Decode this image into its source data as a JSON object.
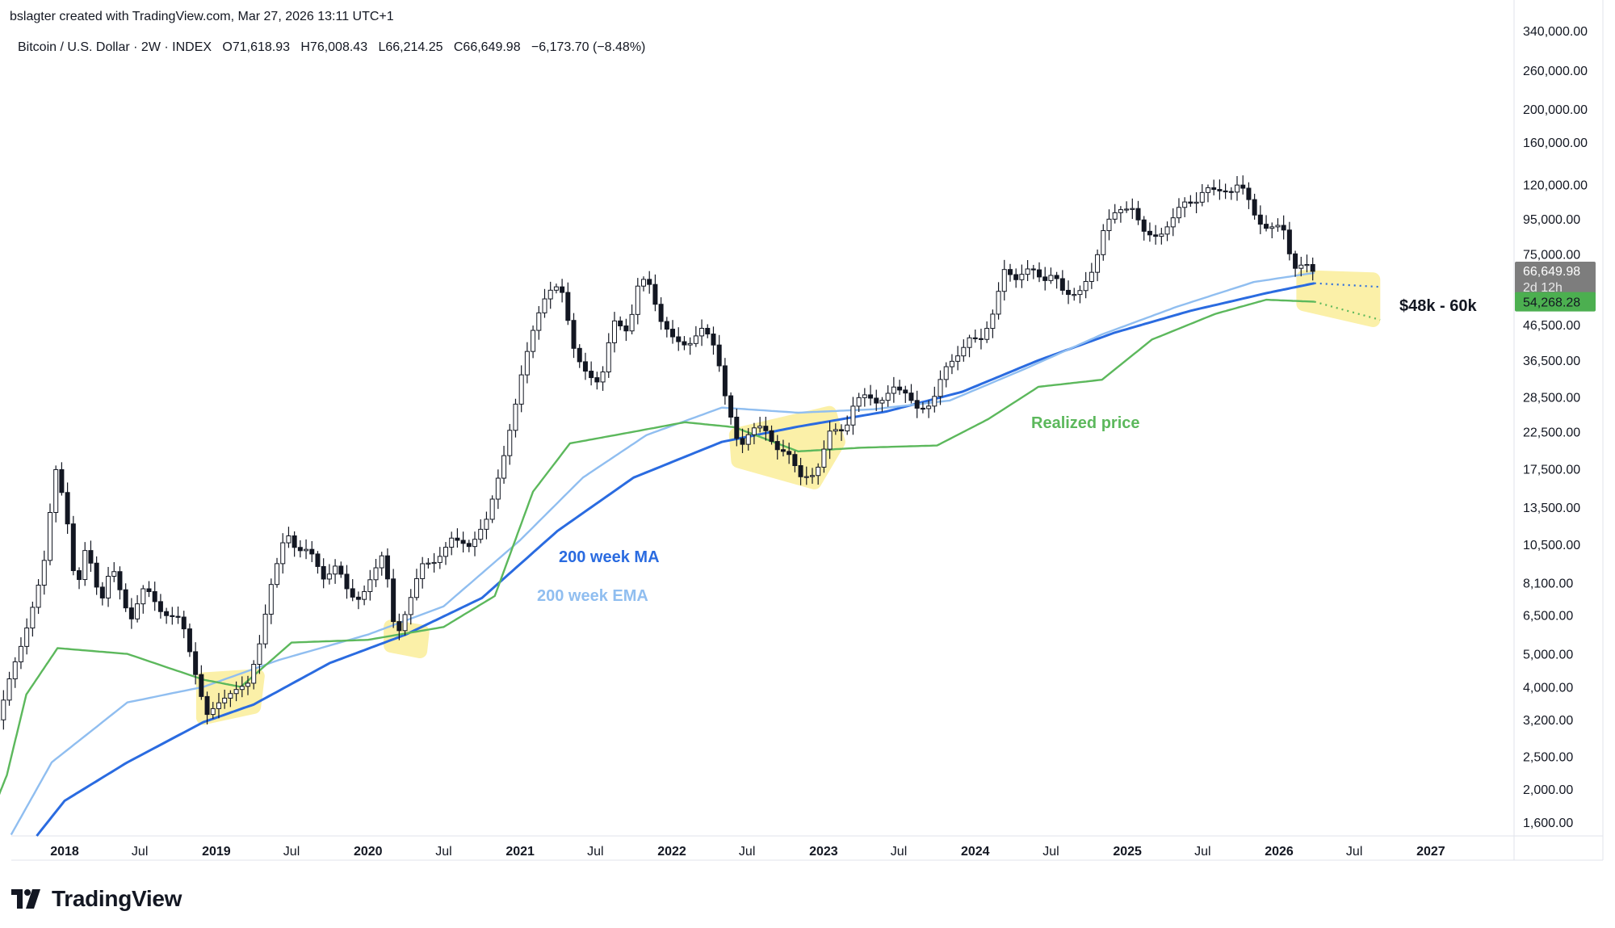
{
  "header": {
    "created_by": "bslagter created with TradingView.com, Mar 27, 2026 13:11 UTC+1",
    "symbol": "Bitcoin / U.S. Dollar · 2W · INDEX",
    "open": "O71,618.93",
    "high": "H76,008.43",
    "low": "L66,214.25",
    "close": "C66,649.98",
    "change": "−6,173.70 (−8.48%)"
  },
  "brand": {
    "name": "TradingView",
    "logo_icon": "tradingview-logo-icon"
  },
  "colors": {
    "candle": "#131722",
    "ma": "#2a6be0",
    "ema": "#90bef0",
    "realized": "#5cb85c",
    "highlight": "#fbef9f",
    "last_price_bg": "#7d7d7d",
    "realized_label_bg": "#4caf50"
  },
  "price_labels": {
    "last": "66,649.98",
    "countdown": "2d 12h",
    "realized": "54,268.28"
  },
  "annotations": {
    "ma": "200 week MA",
    "ema": "200 week EMA",
    "realized": "Realized price",
    "target": "$48k - 60k"
  },
  "chart_data": {
    "type": "candlestick",
    "interval": "2W",
    "y_scale": "log",
    "ylim": [
      1400,
      360000
    ],
    "xlim": [
      "2017-07-01",
      "2027-07-01"
    ],
    "y_ticks": [
      {
        "v": 340000,
        "label": "340,000.00"
      },
      {
        "v": 260000,
        "label": "260,000.00"
      },
      {
        "v": 200000,
        "label": "200,000.00"
      },
      {
        "v": 160000,
        "label": "160,000.00"
      },
      {
        "v": 120000,
        "label": "120,000.00"
      },
      {
        "v": 95000,
        "label": "95,000.00"
      },
      {
        "v": 75000,
        "label": "75,000.00"
      },
      {
        "v": 46500,
        "label": "46,500.00"
      },
      {
        "v": 36500,
        "label": "36,500.00"
      },
      {
        "v": 28500,
        "label": "28,500.00"
      },
      {
        "v": 22500,
        "label": "22,500.00"
      },
      {
        "v": 17500,
        "label": "17,500.00"
      },
      {
        "v": 13500,
        "label": "13,500.00"
      },
      {
        "v": 10500,
        "label": "10,500.00"
      },
      {
        "v": 8100,
        "label": "8,100.00"
      },
      {
        "v": 6500,
        "label": "6,500.00"
      },
      {
        "v": 5000,
        "label": "5,000.00"
      },
      {
        "v": 4000,
        "label": "4,000.00"
      },
      {
        "v": 3200,
        "label": "3,200.00"
      },
      {
        "v": 2500,
        "label": "2,500.00"
      },
      {
        "v": 2000,
        "label": "2,000.00"
      },
      {
        "v": 1600,
        "label": "1,600.00"
      }
    ],
    "x_ticks": [
      {
        "d": "2018-01-01",
        "label": "2018",
        "bold": true
      },
      {
        "d": "2018-07-01",
        "label": "Jul",
        "bold": false
      },
      {
        "d": "2019-01-01",
        "label": "2019",
        "bold": true
      },
      {
        "d": "2019-07-01",
        "label": "Jul",
        "bold": false
      },
      {
        "d": "2020-01-01",
        "label": "2020",
        "bold": true
      },
      {
        "d": "2020-07-01",
        "label": "Jul",
        "bold": false
      },
      {
        "d": "2021-01-01",
        "label": "2021",
        "bold": true
      },
      {
        "d": "2021-07-01",
        "label": "Jul",
        "bold": false
      },
      {
        "d": "2022-01-01",
        "label": "2022",
        "bold": true
      },
      {
        "d": "2022-07-01",
        "label": "Jul",
        "bold": false
      },
      {
        "d": "2023-01-01",
        "label": "2023",
        "bold": true
      },
      {
        "d": "2023-07-01",
        "label": "Jul",
        "bold": false
      },
      {
        "d": "2024-01-01",
        "label": "2024",
        "bold": true
      },
      {
        "d": "2024-07-01",
        "label": "Jul",
        "bold": false
      },
      {
        "d": "2025-01-01",
        "label": "2025",
        "bold": true
      },
      {
        "d": "2025-07-01",
        "label": "Jul",
        "bold": false
      },
      {
        "d": "2026-01-01",
        "label": "2026",
        "bold": true
      },
      {
        "d": "2026-07-01",
        "label": "Jul",
        "bold": false
      },
      {
        "d": "2027-01-01",
        "label": "2027",
        "bold": true
      }
    ],
    "price_anchors": [
      [
        "2017-08-01",
        3200
      ],
      [
        "2017-09-01",
        4400
      ],
      [
        "2017-10-01",
        5500
      ],
      [
        "2017-11-01",
        7500
      ],
      [
        "2017-11-25",
        10000
      ],
      [
        "2017-12-15",
        18000
      ],
      [
        "2018-01-10",
        13500
      ],
      [
        "2018-02-05",
        7500
      ],
      [
        "2018-03-01",
        10500
      ],
      [
        "2018-04-05",
        7000
      ],
      [
        "2018-05-01",
        9200
      ],
      [
        "2018-06-15",
        6200
      ],
      [
        "2018-07-20",
        8000
      ],
      [
        "2018-09-01",
        6500
      ],
      [
        "2018-10-15",
        6400
      ],
      [
        "2018-11-20",
        4300
      ],
      [
        "2018-12-15",
        3300
      ],
      [
        "2019-01-15",
        3600
      ],
      [
        "2019-02-20",
        3900
      ],
      [
        "2019-03-25",
        4100
      ],
      [
        "2019-04-20",
        5200
      ],
      [
        "2019-05-20",
        8000
      ],
      [
        "2019-06-25",
        11500
      ],
      [
        "2019-07-20",
        10000
      ],
      [
        "2019-08-20",
        10200
      ],
      [
        "2019-09-25",
        8200
      ],
      [
        "2019-10-25",
        9200
      ],
      [
        "2019-11-25",
        7400
      ],
      [
        "2019-12-20",
        7200
      ],
      [
        "2020-01-20",
        8600
      ],
      [
        "2020-02-15",
        10000
      ],
      [
        "2020-03-15",
        5500
      ],
      [
        "2020-04-15",
        7000
      ],
      [
        "2020-05-15",
        9200
      ],
      [
        "2020-06-20",
        9300
      ],
      [
        "2020-07-28",
        11000
      ],
      [
        "2020-09-10",
        10300
      ],
      [
        "2020-10-20",
        12500
      ],
      [
        "2020-11-25",
        18000
      ],
      [
        "2020-12-25",
        26000
      ],
      [
        "2021-01-15",
        35000
      ],
      [
        "2021-02-15",
        48000
      ],
      [
        "2021-03-15",
        58000
      ],
      [
        "2021-04-15",
        61000
      ],
      [
        "2021-05-20",
        38000
      ],
      [
        "2021-06-20",
        33000
      ],
      [
        "2021-07-20",
        31000
      ],
      [
        "2021-08-20",
        48000
      ],
      [
        "2021-09-25",
        44000
      ],
      [
        "2021-10-20",
        62000
      ],
      [
        "2021-11-10",
        64000
      ],
      [
        "2021-12-10",
        48000
      ],
      [
        "2022-01-15",
        42000
      ],
      [
        "2022-02-15",
        40000
      ],
      [
        "2022-03-25",
        46000
      ],
      [
        "2022-04-25",
        39000
      ],
      [
        "2022-05-15",
        29000
      ],
      [
        "2022-06-20",
        20000
      ],
      [
        "2022-07-20",
        23000
      ],
      [
        "2022-08-15",
        23500
      ],
      [
        "2022-09-15",
        20000
      ],
      [
        "2022-10-15",
        19500
      ],
      [
        "2022-11-15",
        16500
      ],
      [
        "2022-12-20",
        16800
      ],
      [
        "2023-01-25",
        23000
      ],
      [
        "2023-03-01",
        22500
      ],
      [
        "2023-03-25",
        28000
      ],
      [
        "2023-04-20",
        29000
      ],
      [
        "2023-05-20",
        27000
      ],
      [
        "2023-06-25",
        30500
      ],
      [
        "2023-07-25",
        29200
      ],
      [
        "2023-08-25",
        26000
      ],
      [
        "2023-09-25",
        27000
      ],
      [
        "2023-10-25",
        34500
      ],
      [
        "2023-12-01",
        38000
      ],
      [
        "2023-12-25",
        42500
      ],
      [
        "2024-01-25",
        42000
      ],
      [
        "2024-02-25",
        52000
      ],
      [
        "2024-03-15",
        68000
      ],
      [
        "2024-04-15",
        63000
      ],
      [
        "2024-05-20",
        69000
      ],
      [
        "2024-06-20",
        62000
      ],
      [
        "2024-07-15",
        66000
      ],
      [
        "2024-08-10",
        57000
      ],
      [
        "2024-09-10",
        57000
      ],
      [
        "2024-10-20",
        68000
      ],
      [
        "2024-11-15",
        92000
      ],
      [
        "2024-12-15",
        101000
      ],
      [
        "2025-01-20",
        102000
      ],
      [
        "2025-02-20",
        86000
      ],
      [
        "2025-03-25",
        84000
      ],
      [
        "2025-04-20",
        92000
      ],
      [
        "2025-05-20",
        107000
      ],
      [
        "2025-06-20",
        105000
      ],
      [
        "2025-07-15",
        118000
      ],
      [
        "2025-08-15",
        115000
      ],
      [
        "2025-09-15",
        114000
      ],
      [
        "2025-10-05",
        122000
      ],
      [
        "2025-10-25",
        110000
      ],
      [
        "2025-11-15",
        94000
      ],
      [
        "2025-12-05",
        89000
      ],
      [
        "2026-01-05",
        91000
      ],
      [
        "2026-01-25",
        87000
      ],
      [
        "2026-02-05",
        71000
      ],
      [
        "2026-02-20",
        67000
      ],
      [
        "2026-03-10",
        71618.93
      ],
      [
        "2026-03-27",
        66649.98
      ]
    ],
    "series": [
      {
        "name": "200 week MA",
        "color": "#2a6be0",
        "points": [
          [
            "2017-09-01",
            1200
          ],
          [
            "2018-01-01",
            1850
          ],
          [
            "2018-06-01",
            2400
          ],
          [
            "2018-12-01",
            3150
          ],
          [
            "2019-04-01",
            3550
          ],
          [
            "2019-10-01",
            4700
          ],
          [
            "2020-04-01",
            5700
          ],
          [
            "2020-10-01",
            7300
          ],
          [
            "2021-04-01",
            11500
          ],
          [
            "2021-10-01",
            16500
          ],
          [
            "2022-05-01",
            21000
          ],
          [
            "2022-11-01",
            23300
          ],
          [
            "2023-06-01",
            25800
          ],
          [
            "2023-12-01",
            29500
          ],
          [
            "2024-06-01",
            36500
          ],
          [
            "2024-12-01",
            44000
          ],
          [
            "2025-06-01",
            51000
          ],
          [
            "2025-12-01",
            57500
          ],
          [
            "2026-03-27",
            61500
          ]
        ]
      },
      {
        "name": "200 week EMA",
        "color": "#90bef0",
        "points": [
          [
            "2017-08-01",
            1300
          ],
          [
            "2017-12-01",
            2400
          ],
          [
            "2018-06-01",
            3600
          ],
          [
            "2018-12-01",
            4000
          ],
          [
            "2019-06-01",
            4800
          ],
          [
            "2020-01-01",
            5700
          ],
          [
            "2020-07-01",
            6900
          ],
          [
            "2021-01-01",
            10800
          ],
          [
            "2021-06-01",
            16500
          ],
          [
            "2021-11-01",
            22000
          ],
          [
            "2022-05-01",
            26500
          ],
          [
            "2022-11-01",
            25600
          ],
          [
            "2023-05-01",
            26200
          ],
          [
            "2023-11-01",
            27800
          ],
          [
            "2024-05-01",
            34500
          ],
          [
            "2024-11-01",
            43500
          ],
          [
            "2025-05-01",
            52500
          ],
          [
            "2025-11-01",
            62000
          ],
          [
            "2026-03-27",
            66000
          ]
        ]
      },
      {
        "name": "Realized price",
        "color": "#5cb85c",
        "points": [
          [
            "2017-07-01",
            1600
          ],
          [
            "2017-08-15",
            2200
          ],
          [
            "2017-10-01",
            3800
          ],
          [
            "2017-12-15",
            5200
          ],
          [
            "2018-06-01",
            5000
          ],
          [
            "2018-12-01",
            4200
          ],
          [
            "2019-03-01",
            4000
          ],
          [
            "2019-07-01",
            5400
          ],
          [
            "2020-01-01",
            5500
          ],
          [
            "2020-07-01",
            6000
          ],
          [
            "2020-11-01",
            7400
          ],
          [
            "2021-02-01",
            15000
          ],
          [
            "2021-05-01",
            20800
          ],
          [
            "2021-10-01",
            22500
          ],
          [
            "2022-02-01",
            24000
          ],
          [
            "2022-06-01",
            23200
          ],
          [
            "2022-11-01",
            19700
          ],
          [
            "2023-04-01",
            20200
          ],
          [
            "2023-10-01",
            20500
          ],
          [
            "2024-02-01",
            24500
          ],
          [
            "2024-06-01",
            30500
          ],
          [
            "2024-11-01",
            32000
          ],
          [
            "2025-03-01",
            42000
          ],
          [
            "2025-08-01",
            50000
          ],
          [
            "2025-12-01",
            55000
          ],
          [
            "2026-03-27",
            54268.28
          ]
        ]
      }
    ],
    "target_range": [
      "$48k - 60k",
      48000,
      60000
    ]
  }
}
